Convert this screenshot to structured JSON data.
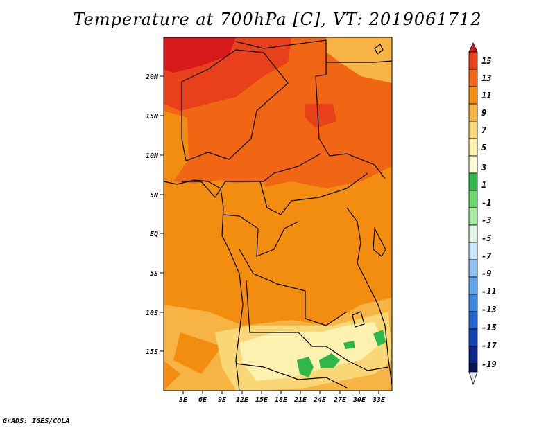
{
  "title": "Temperature at 700hPa [C], VT: 2019061712",
  "footer": "GrADS: IGES/COLA",
  "map": {
    "lon_labels": [
      "3E",
      "6E",
      "9E",
      "12E",
      "15E",
      "18E",
      "21E",
      "24E",
      "27E",
      "30E",
      "33E"
    ],
    "lat_labels": [
      "20N",
      "15N",
      "10N",
      "5N",
      "EQ",
      "5S",
      "10S",
      "15S"
    ]
  },
  "colorbar": {
    "labels": [
      "15",
      "13",
      "11",
      "9",
      "7",
      "5",
      "3",
      "1",
      "-1",
      "-3",
      "-5",
      "-7",
      "-9",
      "-11",
      "-13",
      "-15",
      "-17",
      "-19"
    ],
    "colors": [
      "#d7191c",
      "#e8401a",
      "#f06614",
      "#f28d0f",
      "#f7b444",
      "#fad776",
      "#fdf1b0",
      "#2fb84a",
      "#6cd86c",
      "#a8eba4",
      "#dff5e6",
      "#c8e6f8",
      "#8fc4f2",
      "#5fa6ea",
      "#3a86e0",
      "#1f63cf",
      "#1443b0",
      "#0d2488",
      "#081458",
      "#e6e8f5"
    ]
  }
}
